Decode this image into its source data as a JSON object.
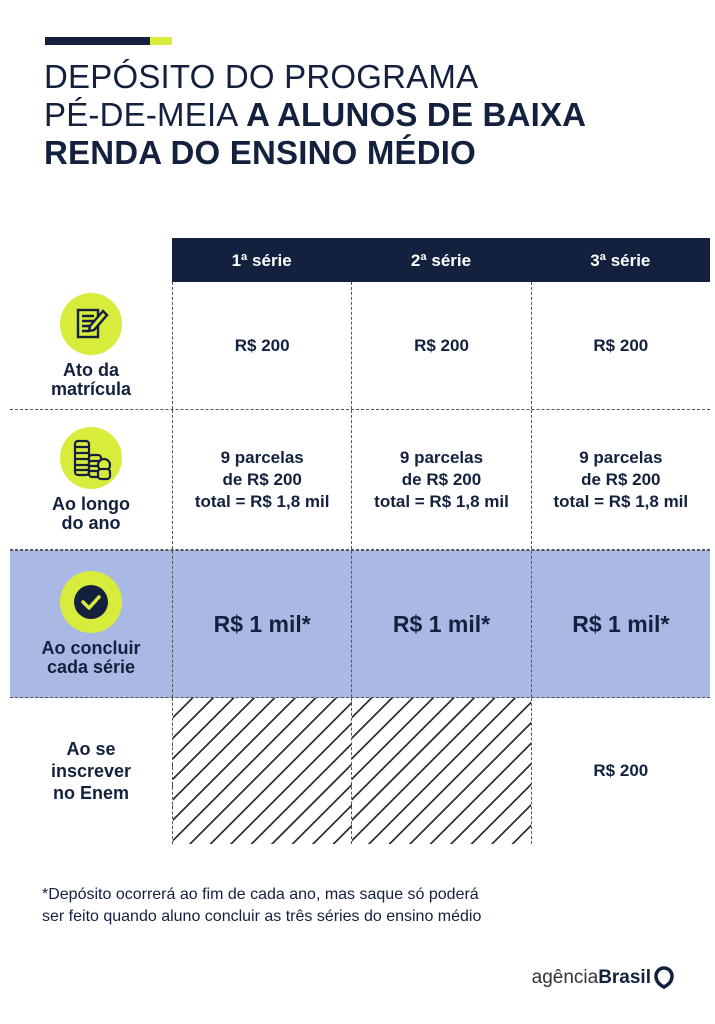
{
  "colors": {
    "navy": "#13213f",
    "lime": "#d8ec3c",
    "highlight": "#aab9e3"
  },
  "title": {
    "line1": "DEPÓSITO DO PROGRAMA",
    "line2_light": "PÉ-DE-MEIA",
    "line2_bold": "A ALUNOS DE BAIXA",
    "line3": "RENDA DO ENSINO MÉDIO"
  },
  "columns": [
    "1ª série",
    "2ª série",
    "3ª série"
  ],
  "rows": [
    {
      "label": "Ato da matrícula",
      "icon": "document-pencil-icon",
      "cells": [
        "R$ 200",
        "R$ 200",
        "R$ 200"
      ]
    },
    {
      "label": "Ao longo do ano",
      "icon": "coins-stack-icon",
      "cells": [
        "9 parcelas\nde R$ 200\ntotal = R$ 1,8 mil",
        "9 parcelas\nde R$ 200\ntotal = R$ 1,8 mil",
        "9 parcelas\nde R$ 200\ntotal = R$ 1,8 mil"
      ]
    },
    {
      "label": "Ao concluir cada série",
      "icon": "check-circle-icon",
      "cells": [
        "R$ 1 mil*",
        "R$ 1 mil*",
        "R$ 1 mil*"
      ]
    },
    {
      "label": "Ao se inscrever no Enem",
      "cells": [
        "",
        "",
        "R$ 200"
      ]
    }
  ],
  "footnote": {
    "line1": "*Depósito ocorrerá ao fim de cada ano, mas saque só poderá",
    "line2": "ser feito quando aluno concluir as três séries do ensino médio"
  },
  "logo": {
    "part1": "agência",
    "part2": "Brasil"
  }
}
